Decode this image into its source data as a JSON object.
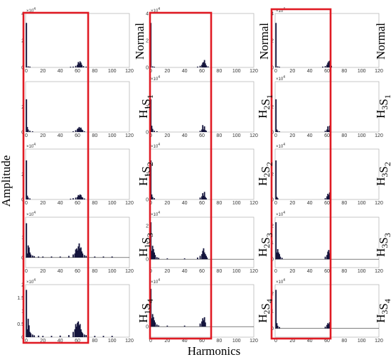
{
  "chart_data": {
    "type": "bar",
    "layout": "grid of 15 small-multiple spectra, 5 rows x 3 columns",
    "xlabel": "Harmonics",
    "ylabel": "Amplitude",
    "xlim": [
      0,
      120
    ],
    "xticks": [
      "20",
      "40",
      "60",
      "80",
      "100",
      "120"
    ],
    "first_xtick": "0",
    "exponent": "×10",
    "exponent_power": "4",
    "grid": false,
    "highlight_box_color": "#e01b24",
    "bar_color": "#14143c",
    "row_labels": [
      [
        "Normal",
        "Normal",
        "Normal"
      ],
      [
        [
          "H",
          "1",
          "S",
          "1"
        ],
        [
          "H",
          "2",
          "S",
          "1"
        ],
        [
          "H",
          "3",
          "S",
          "1"
        ]
      ],
      [
        [
          "H",
          "1",
          "S",
          "2"
        ],
        [
          "H",
          "2",
          "S",
          "2"
        ],
        [
          "H",
          "3",
          "S",
          "2"
        ]
      ],
      [
        [
          "H",
          "1",
          "S",
          "3"
        ],
        [
          "H",
          "2",
          "S",
          "3"
        ],
        [
          "H",
          "3",
          "S",
          "3"
        ]
      ],
      [
        [
          "H",
          "1",
          "S",
          "4"
        ],
        [
          "H",
          "2",
          "S",
          "4"
        ],
        [
          "H",
          "3",
          "S",
          "4"
        ]
      ]
    ],
    "panels": [
      {
        "row": 0,
        "col": 0,
        "ylim": [
          0,
          4
        ],
        "yticks": [
          "0",
          "2",
          "4"
        ],
        "show_exp": true,
        "bars": [
          [
            1,
            3.3
          ],
          [
            3,
            0.08
          ],
          [
            5,
            0.06
          ],
          [
            52,
            0.05
          ],
          [
            55,
            0.06
          ],
          [
            58,
            0.12
          ],
          [
            60,
            0.2
          ],
          [
            61,
            0.4
          ],
          [
            62,
            0.3
          ],
          [
            63,
            0.45
          ],
          [
            64,
            0.35
          ],
          [
            65,
            0.2
          ],
          [
            67,
            0.1
          ],
          [
            70,
            0.06
          ]
        ]
      },
      {
        "row": 0,
        "col": 1,
        "ylim": [
          0,
          4
        ],
        "yticks": [
          "0",
          "2",
          "4"
        ],
        "show_exp": true,
        "bars": [
          [
            1,
            3.3
          ],
          [
            3,
            0.08
          ],
          [
            5,
            0.05
          ],
          [
            55,
            0.06
          ],
          [
            58,
            0.12
          ],
          [
            60,
            0.2
          ],
          [
            61,
            0.35
          ],
          [
            62,
            0.4
          ],
          [
            63,
            0.55
          ],
          [
            64,
            0.3
          ],
          [
            65,
            0.15
          ],
          [
            67,
            0.08
          ]
        ]
      },
      {
        "row": 0,
        "col": 2,
        "ylim": [
          0,
          4
        ],
        "yticks": [
          "0",
          "2",
          "4"
        ],
        "show_exp": true,
        "bars": [
          [
            1,
            3.3
          ],
          [
            3,
            0.08
          ],
          [
            5,
            0.05
          ],
          [
            55,
            0.06
          ],
          [
            58,
            0.1
          ],
          [
            60,
            0.2
          ],
          [
            61,
            0.35
          ],
          [
            62,
            0.45
          ],
          [
            63,
            0.5
          ],
          [
            64,
            0.3
          ],
          [
            65,
            0.12
          ]
        ]
      },
      {
        "row": 1,
        "col": 0,
        "ylim": [
          0,
          4
        ],
        "yticks": [
          "0",
          "2"
        ],
        "show_exp": false,
        "bars": [
          [
            1,
            2.6
          ],
          [
            2,
            0.4
          ],
          [
            3,
            0.2
          ],
          [
            5,
            0.1
          ],
          [
            8,
            0.06
          ],
          [
            55,
            0.06
          ],
          [
            58,
            0.15
          ],
          [
            60,
            0.25
          ],
          [
            61,
            0.3
          ],
          [
            62,
            0.4
          ],
          [
            63,
            0.3
          ],
          [
            64,
            0.35
          ],
          [
            65,
            0.2
          ],
          [
            66,
            0.15
          ],
          [
            68,
            0.06
          ]
        ]
      },
      {
        "row": 1,
        "col": 1,
        "ylim": [
          0,
          4
        ],
        "yticks": [
          "0",
          "2"
        ],
        "show_exp": true,
        "bars": [
          [
            1,
            2.6
          ],
          [
            2,
            0.5
          ],
          [
            3,
            0.25
          ],
          [
            5,
            0.1
          ],
          [
            8,
            0.06
          ],
          [
            58,
            0.1
          ],
          [
            60,
            0.2
          ],
          [
            61,
            0.55
          ],
          [
            62,
            0.2
          ],
          [
            63,
            0.45
          ],
          [
            64,
            0.15
          ],
          [
            65,
            0.1
          ]
        ]
      },
      {
        "row": 1,
        "col": 2,
        "ylim": [
          0,
          4
        ],
        "yticks": [
          "0",
          "2"
        ],
        "show_exp": true,
        "bars": [
          [
            1,
            2.6
          ],
          [
            2,
            0.2
          ],
          [
            3,
            0.1
          ],
          [
            5,
            0.06
          ],
          [
            58,
            0.1
          ],
          [
            60,
            0.2
          ],
          [
            61,
            0.45
          ],
          [
            62,
            0.15
          ],
          [
            63,
            0.5
          ],
          [
            64,
            0.1
          ]
        ]
      },
      {
        "row": 2,
        "col": 0,
        "ylim": [
          0,
          4
        ],
        "yticks": [
          "0",
          "2"
        ],
        "show_exp": true,
        "bars": [
          [
            1,
            3.1
          ],
          [
            2,
            0.3
          ],
          [
            3,
            0.15
          ],
          [
            5,
            0.08
          ],
          [
            52,
            0.06
          ],
          [
            55,
            0.1
          ],
          [
            58,
            0.15
          ],
          [
            60,
            0.2
          ],
          [
            61,
            0.35
          ],
          [
            62,
            0.3
          ],
          [
            63,
            0.4
          ],
          [
            64,
            0.35
          ],
          [
            65,
            0.2
          ],
          [
            66,
            0.15
          ],
          [
            68,
            0.08
          ]
        ]
      },
      {
        "row": 2,
        "col": 1,
        "ylim": [
          0,
          4
        ],
        "yticks": [
          "0",
          "2"
        ],
        "show_exp": true,
        "bars": [
          [
            1,
            3.1
          ],
          [
            2,
            0.4
          ],
          [
            3,
            0.2
          ],
          [
            5,
            0.1
          ],
          [
            58,
            0.15
          ],
          [
            60,
            0.25
          ],
          [
            61,
            0.5
          ],
          [
            62,
            0.3
          ],
          [
            63,
            0.6
          ],
          [
            64,
            0.2
          ],
          [
            65,
            0.1
          ]
        ]
      },
      {
        "row": 2,
        "col": 2,
        "ylim": [
          0,
          4
        ],
        "yticks": [
          "0",
          "2"
        ],
        "show_exp": true,
        "bars": [
          [
            1,
            3.1
          ],
          [
            2,
            0.2
          ],
          [
            3,
            0.1
          ],
          [
            58,
            0.1
          ],
          [
            60,
            0.25
          ],
          [
            61,
            0.45
          ],
          [
            62,
            0.35
          ],
          [
            63,
            0.55
          ],
          [
            64,
            0.2
          ]
        ]
      },
      {
        "row": 3,
        "col": 0,
        "ylim": [
          -0.5,
          2
        ],
        "yticks": [
          "0",
          "1"
        ],
        "show_exp": true,
        "bars": [
          [
            1,
            1.7
          ],
          [
            2,
            0.2
          ],
          [
            3,
            0.6
          ],
          [
            4,
            0.5
          ],
          [
            5,
            0.25
          ],
          [
            6,
            0.15
          ],
          [
            8,
            0.1
          ],
          [
            10,
            0.07
          ],
          [
            15,
            0.05
          ],
          [
            20,
            0.05
          ],
          [
            30,
            0.05
          ],
          [
            40,
            0.05
          ],
          [
            50,
            0.08
          ],
          [
            55,
            0.15
          ],
          [
            57,
            0.2
          ],
          [
            58,
            0.4
          ],
          [
            59,
            0.45
          ],
          [
            60,
            0.35
          ],
          [
            61,
            0.55
          ],
          [
            62,
            0.7
          ],
          [
            63,
            0.45
          ],
          [
            64,
            0.5
          ],
          [
            65,
            0.3
          ],
          [
            66,
            0.2
          ],
          [
            68,
            0.12
          ],
          [
            70,
            0.08
          ],
          [
            80,
            0.05
          ],
          [
            90,
            0.05
          ],
          [
            100,
            0.05
          ]
        ]
      },
      {
        "row": 3,
        "col": 1,
        "ylim": [
          -0.5,
          2.5
        ],
        "yticks": [
          "0",
          "1",
          "2"
        ],
        "show_exp": true,
        "bars": [
          [
            1,
            2.2
          ],
          [
            2,
            0.5
          ],
          [
            3,
            0.8
          ],
          [
            4,
            0.6
          ],
          [
            5,
            0.4
          ],
          [
            6,
            0.25
          ],
          [
            8,
            0.12
          ],
          [
            10,
            0.08
          ],
          [
            20,
            0.05
          ],
          [
            40,
            0.05
          ],
          [
            55,
            0.1
          ],
          [
            58,
            0.2
          ],
          [
            60,
            0.3
          ],
          [
            61,
            0.5
          ],
          [
            62,
            0.65
          ],
          [
            63,
            0.4
          ],
          [
            64,
            0.3
          ],
          [
            65,
            0.2
          ],
          [
            66,
            0.1
          ]
        ]
      },
      {
        "row": 3,
        "col": 2,
        "ylim": [
          -0.5,
          2.5
        ],
        "yticks": [
          "0",
          "1",
          "2"
        ],
        "show_exp": true,
        "bars": [
          [
            1,
            2.2
          ],
          [
            2,
            0.4
          ],
          [
            3,
            0.6
          ],
          [
            4,
            0.4
          ],
          [
            5,
            0.3
          ],
          [
            6,
            0.15
          ],
          [
            8,
            0.08
          ],
          [
            58,
            0.15
          ],
          [
            60,
            0.25
          ],
          [
            61,
            0.45
          ],
          [
            62,
            0.55
          ],
          [
            63,
            0.35
          ],
          [
            64,
            0.2
          ]
        ]
      },
      {
        "row": 4,
        "col": 0,
        "ylim": [
          0,
          2
        ],
        "yticks": [
          "0",
          "0.5",
          "1",
          "1.5",
          "2"
        ],
        "show_exp": true,
        "bars": [
          [
            1,
            1.8
          ],
          [
            2,
            0.3
          ],
          [
            3,
            0.7
          ],
          [
            4,
            0.45
          ],
          [
            5,
            0.2
          ],
          [
            6,
            0.15
          ],
          [
            8,
            0.1
          ],
          [
            10,
            0.07
          ],
          [
            15,
            0.06
          ],
          [
            20,
            0.05
          ],
          [
            30,
            0.05
          ],
          [
            40,
            0.06
          ],
          [
            50,
            0.08
          ],
          [
            55,
            0.2
          ],
          [
            57,
            0.3
          ],
          [
            58,
            0.5
          ],
          [
            59,
            0.4
          ],
          [
            60,
            0.55
          ],
          [
            61,
            0.6
          ],
          [
            62,
            0.45
          ],
          [
            63,
            0.5
          ],
          [
            64,
            0.3
          ],
          [
            65,
            0.2
          ],
          [
            66,
            0.15
          ],
          [
            68,
            0.1
          ],
          [
            70,
            0.08
          ],
          [
            80,
            0.05
          ],
          [
            90,
            0.05
          ],
          [
            100,
            0.05
          ]
        ]
      },
      {
        "row": 4,
        "col": 1,
        "ylim": [
          -0.5,
          2
        ],
        "yticks": [
          "0",
          "1"
        ],
        "show_exp": true,
        "bars": [
          [
            1,
            1.8
          ],
          [
            2,
            0.4
          ],
          [
            3,
            0.6
          ],
          [
            4,
            0.45
          ],
          [
            5,
            0.3
          ],
          [
            6,
            0.2
          ],
          [
            8,
            0.1
          ],
          [
            10,
            0.06
          ],
          [
            20,
            0.05
          ],
          [
            40,
            0.05
          ],
          [
            58,
            0.15
          ],
          [
            60,
            0.25
          ],
          [
            61,
            0.4
          ],
          [
            62,
            0.3
          ],
          [
            63,
            0.45
          ],
          [
            64,
            0.2
          ]
        ]
      },
      {
        "row": 4,
        "col": 2,
        "ylim": [
          -0.5,
          2.5
        ],
        "yticks": [
          "0",
          "1",
          "2"
        ],
        "show_exp": true,
        "bars": [
          [
            1,
            2.2
          ],
          [
            2,
            0.3
          ],
          [
            3,
            0.15
          ],
          [
            5,
            0.08
          ],
          [
            58,
            0.1
          ],
          [
            60,
            0.2
          ],
          [
            61,
            0.3
          ],
          [
            62,
            0.25
          ],
          [
            63,
            0.35
          ],
          [
            64,
            0.1
          ]
        ]
      }
    ]
  }
}
